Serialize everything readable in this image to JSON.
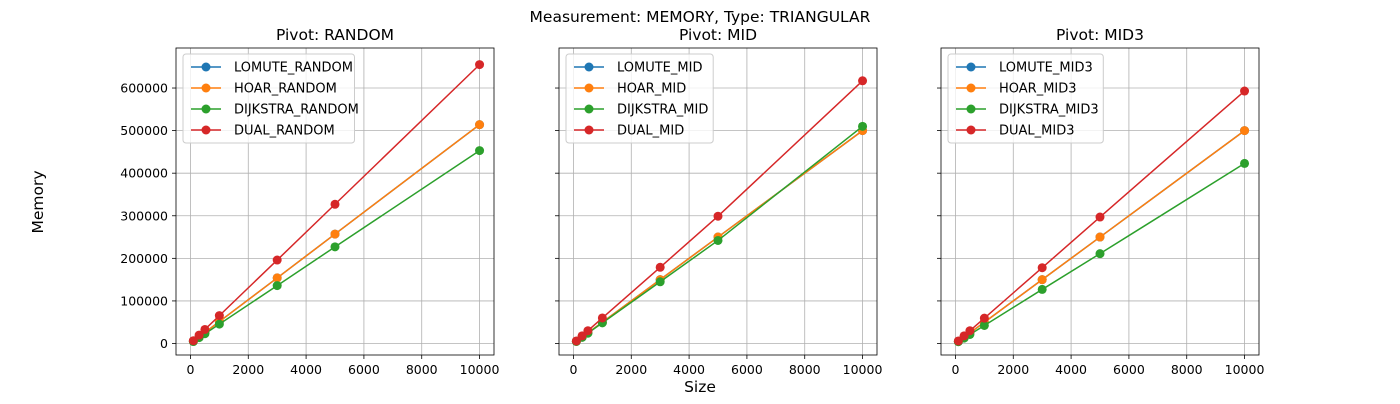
{
  "suptitle": "Measurement: MEMORY, Type: TRIANGULAR",
  "xlabel": "Size",
  "ylabel": "Memory",
  "chart_data": {
    "type": "line",
    "sharey": true,
    "grid": true,
    "legend_placement": "top-left",
    "xlim": [
      -500,
      10500
    ],
    "ylim": [
      -27000,
      694000
    ],
    "x": [
      100,
      300,
      500,
      1000,
      3000,
      5000,
      10000
    ],
    "xticks": [
      0,
      2000,
      4000,
      6000,
      8000,
      10000
    ],
    "yticks": [
      0,
      100000,
      200000,
      300000,
      400000,
      500000,
      600000
    ],
    "colors": [
      "#1f77b4",
      "#ff7f0e",
      "#2ca02c",
      "#d62728"
    ],
    "panels": [
      {
        "title": "Pivot: RANDOM",
        "series": [
          {
            "name": "LOMUTE_RANDOM",
            "values": [
              5200,
              15500,
              25800,
              51500,
              154000,
              257000,
              514000
            ]
          },
          {
            "name": "HOAR_RANDOM",
            "values": [
              5200,
              15500,
              25800,
              51500,
              154000,
              257000,
              514000
            ]
          },
          {
            "name": "DIJKSTRA_RANDOM",
            "values": [
              4600,
              13800,
              23000,
              45500,
              136000,
              227000,
              453000
            ]
          },
          {
            "name": "DUAL_RANDOM",
            "values": [
              6600,
              19800,
              33000,
              65500,
              196000,
              327000,
              655000
            ]
          }
        ]
      },
      {
        "title": "Pivot: MID",
        "series": [
          {
            "name": "LOMUTE_MID",
            "values": [
              5000,
              15000,
              25000,
              50000,
              150000,
              250000,
              500000
            ]
          },
          {
            "name": "HOAR_MID",
            "values": [
              5000,
              15000,
              25000,
              50000,
              150000,
              250000,
              500000
            ]
          },
          {
            "name": "DIJKSTRA_MID",
            "values": [
              4800,
              14500,
              24200,
              48500,
              145000,
              242000,
              510000
            ]
          },
          {
            "name": "DUAL_MID",
            "values": [
              6000,
              18000,
              30000,
              60000,
              179000,
              299000,
              617000
            ]
          }
        ]
      },
      {
        "title": "Pivot: MID3",
        "series": [
          {
            "name": "LOMUTE_MID3",
            "values": [
              5000,
              15000,
              25000,
              50000,
              150000,
              250000,
              500000
            ]
          },
          {
            "name": "HOAR_MID3",
            "values": [
              5000,
              15000,
              25000,
              50000,
              150000,
              250000,
              500000
            ]
          },
          {
            "name": "DIJKSTRA_MID3",
            "values": [
              4200,
              12700,
              21200,
              42400,
              127000,
              211000,
              423000
            ]
          },
          {
            "name": "DUAL_MID3",
            "values": [
              6000,
              18000,
              30000,
              59500,
              178000,
              297000,
              593000
            ]
          }
        ]
      }
    ]
  }
}
